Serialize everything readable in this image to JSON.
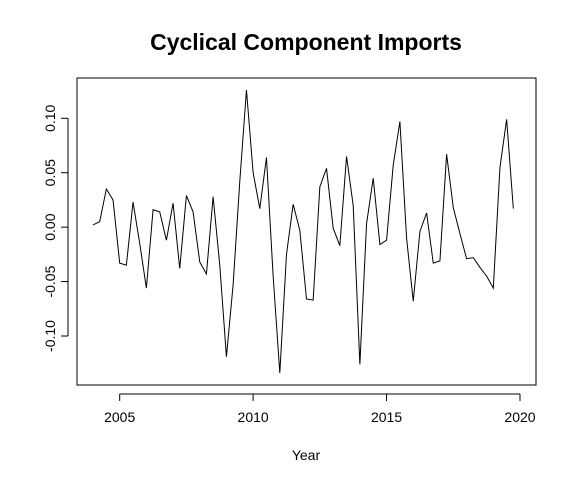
{
  "chart_data": {
    "type": "line",
    "title": "Cyclical Component Imports",
    "xlabel": "Year",
    "ylabel": "",
    "xlim": [
      2003.4,
      2020.6
    ],
    "ylim": [
      -0.145,
      0.137
    ],
    "x_ticks": [
      2005,
      2010,
      2015,
      2020
    ],
    "x_tick_labels": [
      "2005",
      "2010",
      "2015",
      "2020"
    ],
    "y_ticks": [
      -0.1,
      -0.05,
      0.0,
      0.05,
      0.1
    ],
    "y_tick_labels": [
      "-0.10",
      "-0.05",
      "0.00",
      "0.05",
      "0.10"
    ],
    "grid": false,
    "legend": "none",
    "series": [
      {
        "x": [
          2004.0,
          2004.25,
          2004.5,
          2004.75,
          2005.0,
          2005.25,
          2005.5,
          2005.75,
          2006.0,
          2006.25,
          2006.5,
          2006.75,
          2007.0,
          2007.25,
          2007.5,
          2007.75,
          2008.0,
          2008.25,
          2008.5,
          2008.75,
          2009.0,
          2009.25,
          2009.5,
          2009.75,
          2010.0,
          2010.25,
          2010.5,
          2010.75,
          2011.0,
          2011.25,
          2011.5,
          2011.75,
          2012.0,
          2012.25,
          2012.5,
          2012.75,
          2013.0,
          2013.25,
          2013.5,
          2013.75,
          2014.0,
          2014.25,
          2014.5,
          2014.75,
          2015.0,
          2015.25,
          2015.5,
          2015.75,
          2016.0,
          2016.25,
          2016.5,
          2016.75,
          2017.0,
          2017.25,
          2017.5,
          2017.75,
          2018.0,
          2018.25,
          2018.5,
          2018.75,
          2019.0,
          2019.25,
          2019.5,
          2019.75
        ],
        "y": [
          0.002,
          0.005,
          0.035,
          0.025,
          -0.033,
          -0.035,
          0.023,
          -0.015,
          -0.056,
          0.016,
          0.014,
          -0.012,
          0.022,
          -0.038,
          0.029,
          0.014,
          -0.032,
          -0.043,
          0.028,
          -0.035,
          -0.119,
          -0.053,
          0.042,
          0.126,
          0.05,
          0.017,
          0.064,
          -0.045,
          -0.134,
          -0.025,
          0.021,
          -0.003,
          -0.066,
          -0.067,
          0.037,
          0.054,
          -0.001,
          -0.017,
          0.065,
          0.02,
          -0.126,
          0.003,
          0.045,
          -0.016,
          -0.012,
          0.057,
          0.097,
          -0.01,
          -0.068,
          -0.004,
          0.013,
          -0.033,
          -0.031,
          0.067,
          0.018,
          -0.006,
          -0.029,
          -0.028,
          -0.037,
          -0.045,
          -0.056,
          0.055,
          0.099,
          0.017
        ]
      }
    ]
  }
}
